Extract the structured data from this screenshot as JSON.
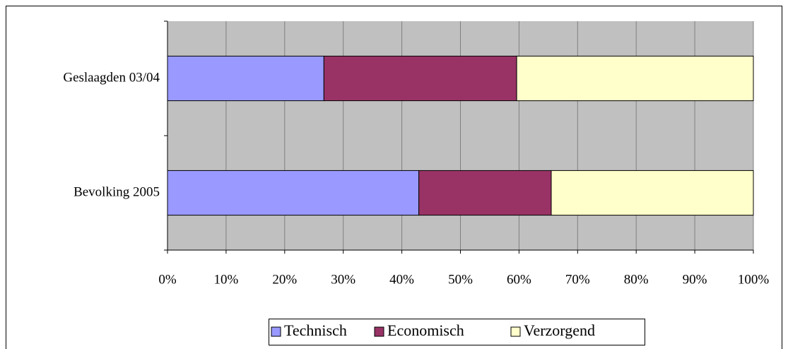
{
  "chart_data": {
    "type": "bar",
    "orientation": "horizontal",
    "stacked": true,
    "categories": [
      "Geslaagden 03/04",
      "Bevolking 2005"
    ],
    "series": [
      {
        "name": "Technisch",
        "color": "#9999ff",
        "values": [
          26.7,
          42.9
        ]
      },
      {
        "name": "Economisch",
        "color": "#993366",
        "values": [
          32.9,
          22.6
        ]
      },
      {
        "name": "Verzorgend",
        "color": "#ffffcc",
        "values": [
          40.4,
          34.5
        ]
      }
    ],
    "xlim": [
      0,
      100
    ],
    "xticks": [
      {
        "value": 0,
        "label": "0%"
      },
      {
        "value": 10,
        "label": "10%"
      },
      {
        "value": 20,
        "label": "20%"
      },
      {
        "value": 30,
        "label": "30%"
      },
      {
        "value": 40,
        "label": "40%"
      },
      {
        "value": 50,
        "label": "50%"
      },
      {
        "value": 60,
        "label": "60%"
      },
      {
        "value": 70,
        "label": "70%"
      },
      {
        "value": 80,
        "label": "80%"
      },
      {
        "value": 90,
        "label": "90%"
      },
      {
        "value": 100,
        "label": "100%"
      }
    ],
    "grid": true,
    "legend": "bottom"
  }
}
